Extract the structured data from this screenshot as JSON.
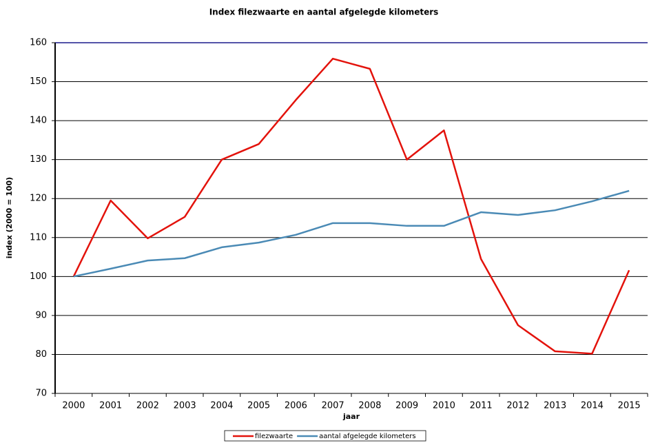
{
  "chart_data": {
    "type": "line",
    "title": "Index filezwaarte en aantal afgelegde kilometers",
    "x_label": "jaar",
    "y_label": "index (2000 = 100)",
    "categories": [
      "2000",
      "2001",
      "2002",
      "2003",
      "2004",
      "2005",
      "2006",
      "2007",
      "2008",
      "2009",
      "2010",
      "2011",
      "2012",
      "2013",
      "2014",
      "2015"
    ],
    "series": [
      {
        "name": "filezwaarte",
        "color": "#e3120b",
        "values": [
          100,
          119.5,
          109.8,
          115.3,
          130,
          134,
          145.3,
          155.9,
          153.3,
          130,
          137.5,
          104.5,
          87.5,
          80.8,
          80.2,
          101.6
        ]
      },
      {
        "name": "aantal afgelegde kilometers",
        "color": "#4a8ab5",
        "values": [
          100,
          102,
          104.1,
          104.7,
          107.5,
          108.7,
          110.7,
          113.7,
          113.7,
          113,
          113,
          116.5,
          115.8,
          117,
          119.3,
          122
        ]
      }
    ],
    "ylim": [
      70,
      160
    ],
    "yticks": [
      70,
      80,
      90,
      100,
      110,
      120,
      130,
      140,
      150,
      160
    ],
    "grid": true,
    "legend": "bottom"
  }
}
